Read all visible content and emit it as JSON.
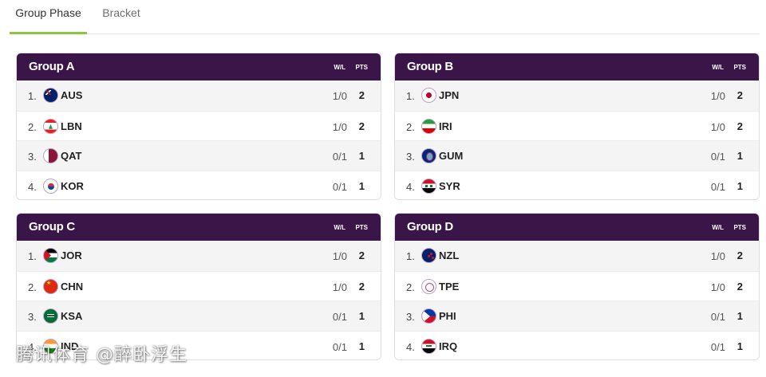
{
  "tabs": [
    {
      "label": "Group Phase",
      "active": true
    },
    {
      "label": "Bracket",
      "active": false
    }
  ],
  "columns": {
    "wl": "W/L",
    "pts": "PTS"
  },
  "accent_color": "#8dc63f",
  "header_color": "#3a1547",
  "groups": [
    {
      "title": "Group A",
      "rows": [
        {
          "pos": "1.",
          "team": "AUS",
          "flag": "australia-flag-icon",
          "wl": "1/0",
          "pts": "2"
        },
        {
          "pos": "2.",
          "team": "LBN",
          "flag": "lebanon-flag-icon",
          "wl": "1/0",
          "pts": "2"
        },
        {
          "pos": "3.",
          "team": "QAT",
          "flag": "qatar-flag-icon",
          "wl": "0/1",
          "pts": "1"
        },
        {
          "pos": "4.",
          "team": "KOR",
          "flag": "korea-flag-icon",
          "wl": "0/1",
          "pts": "1"
        }
      ]
    },
    {
      "title": "Group B",
      "rows": [
        {
          "pos": "1.",
          "team": "JPN",
          "flag": "japan-flag-icon",
          "wl": "1/0",
          "pts": "2"
        },
        {
          "pos": "2.",
          "team": "IRI",
          "flag": "iran-flag-icon",
          "wl": "1/0",
          "pts": "2"
        },
        {
          "pos": "3.",
          "team": "GUM",
          "flag": "guam-flag-icon",
          "wl": "0/1",
          "pts": "1"
        },
        {
          "pos": "4.",
          "team": "SYR",
          "flag": "syria-flag-icon",
          "wl": "0/1",
          "pts": "1"
        }
      ]
    },
    {
      "title": "Group C",
      "rows": [
        {
          "pos": "1.",
          "team": "JOR",
          "flag": "jordan-flag-icon",
          "wl": "1/0",
          "pts": "2"
        },
        {
          "pos": "2.",
          "team": "CHN",
          "flag": "china-flag-icon",
          "wl": "1/0",
          "pts": "2"
        },
        {
          "pos": "3.",
          "team": "KSA",
          "flag": "saudi-arabia-flag-icon",
          "wl": "0/1",
          "pts": "1"
        },
        {
          "pos": "4.",
          "team": "IND",
          "flag": "india-flag-icon",
          "wl": "0/1",
          "pts": "1"
        }
      ]
    },
    {
      "title": "Group D",
      "rows": [
        {
          "pos": "1.",
          "team": "NZL",
          "flag": "new-zealand-flag-icon",
          "wl": "1/0",
          "pts": "2"
        },
        {
          "pos": "2.",
          "team": "TPE",
          "flag": "chinese-taipei-flag-icon",
          "wl": "1/0",
          "pts": "2"
        },
        {
          "pos": "3.",
          "team": "PHI",
          "flag": "philippines-flag-icon",
          "wl": "0/1",
          "pts": "1"
        },
        {
          "pos": "4.",
          "team": "IRQ",
          "flag": "iraq-flag-icon",
          "wl": "0/1",
          "pts": "1"
        }
      ]
    }
  ],
  "watermark": "腾讯体育 @醉卧浮生"
}
